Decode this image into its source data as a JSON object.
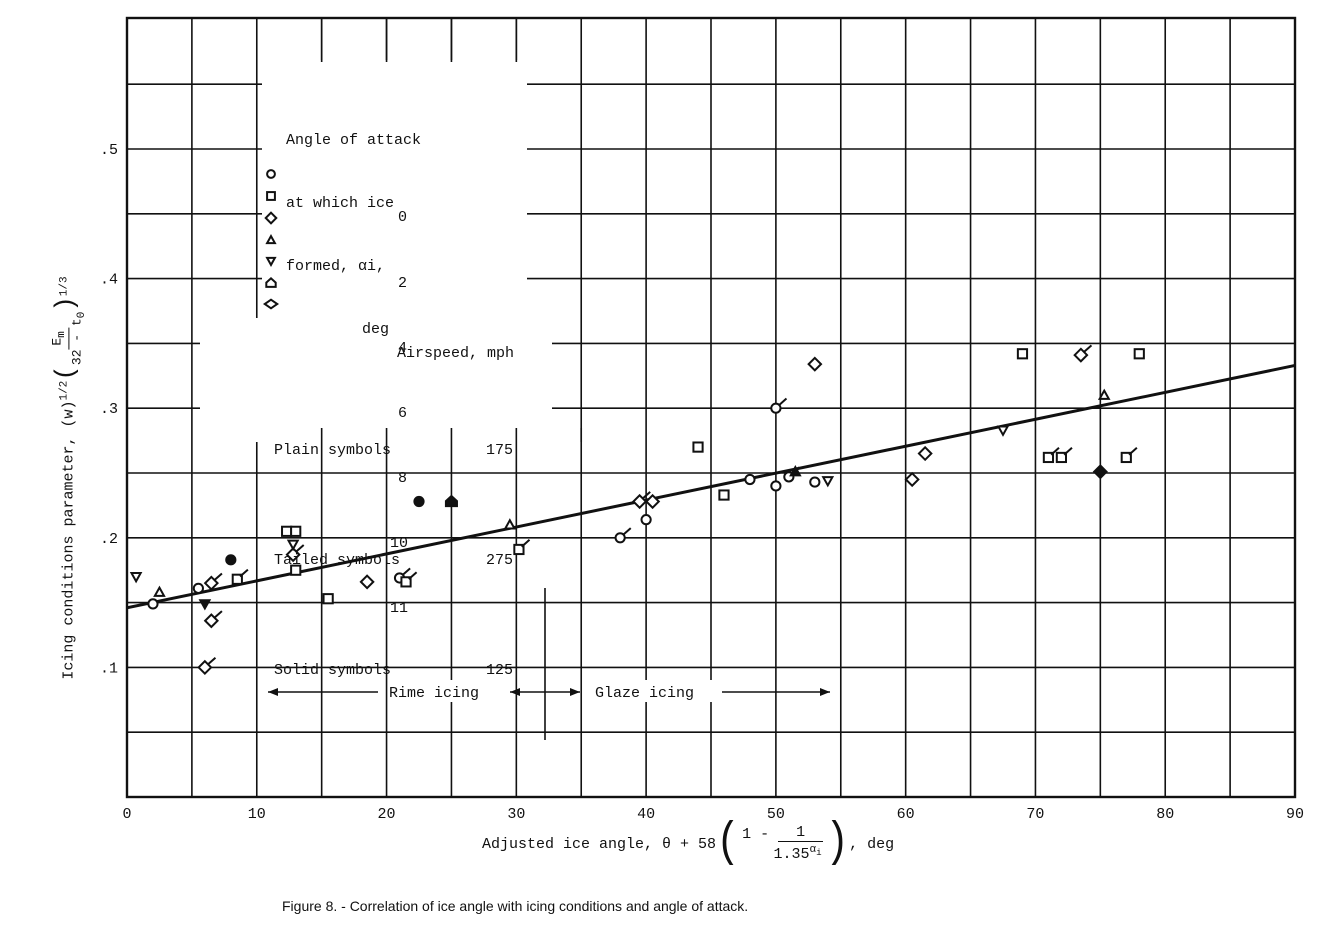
{
  "figure": {
    "caption": "Figure 8. - Correlation of ice angle with icing conditions and angle of attack."
  },
  "chart_data": {
    "type": "scatter",
    "title": "Correlation of ice angle with icing conditions and angle of attack",
    "xlabel": "Adjusted ice angle, θ + 58(1 - 1/1.35^αi), deg",
    "ylabel": "Icing conditions parameter, (w)^1/2 (Em/(32 - t0))^1/3",
    "xlim": [
      0,
      90
    ],
    "ylim": [
      0,
      0.6
    ],
    "x_ticks": [
      "0",
      "10",
      "20",
      "30",
      "40",
      "50",
      "60",
      "70",
      "80",
      "90"
    ],
    "y_ticks": [
      ".1",
      ".2",
      ".3",
      ".4",
      ".5"
    ],
    "grid": true,
    "grid_x_step": 5,
    "grid_y_step": 0.05,
    "fit_line": {
      "x": [
        0,
        90
      ],
      "y": [
        0.146,
        0.333
      ]
    },
    "annotations": [
      {
        "text": "Rime icing",
        "x_range": [
          11,
          35
        ],
        "y": 0.082
      },
      {
        "text": "Glaze icing",
        "x_range": [
          35,
          54
        ],
        "y": 0.082
      }
    ],
    "legend": {
      "title_lines": [
        "Angle of attack",
        "at which ice",
        "formed, αi,",
        "deg"
      ],
      "entries": [
        {
          "symbol": "circle",
          "label": "0"
        },
        {
          "symbol": "square",
          "label": "2"
        },
        {
          "symbol": "diamond",
          "label": "4"
        },
        {
          "symbol": "triangle-up",
          "label": "6"
        },
        {
          "symbol": "triangle-down",
          "label": "8"
        },
        {
          "symbol": "house",
          "label": "10"
        },
        {
          "symbol": "diamond-wide",
          "label": "11"
        }
      ],
      "airspeed_title": "Airspeed, mph",
      "airspeed": [
        {
          "label": "Plain symbols",
          "value": "175"
        },
        {
          "label": "Tailed symbols",
          "value": "275"
        },
        {
          "label": "Solid symbols",
          "value": "125"
        }
      ]
    },
    "series": [
      {
        "name": "0 deg",
        "symbol": "circle",
        "points": [
          {
            "x": 2.0,
            "y": 0.149,
            "style": "plain"
          },
          {
            "x": 5.5,
            "y": 0.161,
            "style": "plain"
          },
          {
            "x": 21.0,
            "y": 0.169,
            "style": "tailed"
          },
          {
            "x": 38.0,
            "y": 0.2,
            "style": "tailed"
          },
          {
            "x": 40.0,
            "y": 0.214,
            "style": "plain"
          },
          {
            "x": 48.0,
            "y": 0.245,
            "style": "plain"
          },
          {
            "x": 50.0,
            "y": 0.24,
            "style": "plain"
          },
          {
            "x": 51.0,
            "y": 0.247,
            "style": "tailed"
          },
          {
            "x": 53.0,
            "y": 0.243,
            "style": "plain"
          },
          {
            "x": 50.0,
            "y": 0.3,
            "style": "tailed"
          },
          {
            "x": 8.0,
            "y": 0.183,
            "style": "solid"
          },
          {
            "x": 22.5,
            "y": 0.228,
            "style": "solid"
          }
        ]
      },
      {
        "name": "2 deg",
        "symbol": "square",
        "points": [
          {
            "x": 8.5,
            "y": 0.168,
            "style": "tailed"
          },
          {
            "x": 12.3,
            "y": 0.205,
            "style": "plain"
          },
          {
            "x": 13.0,
            "y": 0.205,
            "style": "plain"
          },
          {
            "x": 13.0,
            "y": 0.175,
            "style": "plain"
          },
          {
            "x": 15.5,
            "y": 0.153,
            "style": "plain"
          },
          {
            "x": 21.5,
            "y": 0.166,
            "style": "tailed"
          },
          {
            "x": 30.2,
            "y": 0.191,
            "style": "tailed"
          },
          {
            "x": 44.0,
            "y": 0.27,
            "style": "plain"
          },
          {
            "x": 46.0,
            "y": 0.233,
            "style": "plain"
          },
          {
            "x": 69.0,
            "y": 0.342,
            "style": "plain"
          },
          {
            "x": 71.0,
            "y": 0.262,
            "style": "tailed"
          },
          {
            "x": 72.0,
            "y": 0.262,
            "style": "tailed"
          },
          {
            "x": 77.0,
            "y": 0.262,
            "style": "tailed"
          },
          {
            "x": 78.0,
            "y": 0.342,
            "style": "plain"
          }
        ]
      },
      {
        "name": "4 deg",
        "symbol": "diamond",
        "points": [
          {
            "x": 6.5,
            "y": 0.165,
            "style": "tailed"
          },
          {
            "x": 6.5,
            "y": 0.136,
            "style": "tailed"
          },
          {
            "x": 6.0,
            "y": 0.1,
            "style": "tailed"
          },
          {
            "x": 12.8,
            "y": 0.187,
            "style": "tailed"
          },
          {
            "x": 18.5,
            "y": 0.166,
            "style": "plain"
          },
          {
            "x": 39.5,
            "y": 0.228,
            "style": "tailed"
          },
          {
            "x": 40.5,
            "y": 0.228,
            "style": "plain"
          },
          {
            "x": 53.0,
            "y": 0.334,
            "style": "plain"
          },
          {
            "x": 60.5,
            "y": 0.245,
            "style": "plain"
          },
          {
            "x": 61.5,
            "y": 0.265,
            "style": "plain"
          },
          {
            "x": 73.5,
            "y": 0.341,
            "style": "tailed"
          },
          {
            "x": 75.0,
            "y": 0.251,
            "style": "solid"
          }
        ]
      },
      {
        "name": "6 deg",
        "symbol": "triangle-up",
        "points": [
          {
            "x": 2.5,
            "y": 0.158,
            "style": "plain"
          },
          {
            "x": 29.5,
            "y": 0.21,
            "style": "plain"
          },
          {
            "x": 51.5,
            "y": 0.251,
            "style": "solid"
          },
          {
            "x": 75.3,
            "y": 0.31,
            "style": "plain"
          }
        ]
      },
      {
        "name": "8 deg",
        "symbol": "triangle-down",
        "points": [
          {
            "x": 0.7,
            "y": 0.17,
            "style": "plain"
          },
          {
            "x": 6.0,
            "y": 0.149,
            "style": "solid"
          },
          {
            "x": 12.8,
            "y": 0.195,
            "style": "plain"
          },
          {
            "x": 54.0,
            "y": 0.244,
            "style": "plain"
          },
          {
            "x": 67.5,
            "y": 0.283,
            "style": "plain"
          }
        ]
      },
      {
        "name": "10 deg",
        "symbol": "house",
        "points": [
          {
            "x": 25.0,
            "y": 0.228,
            "style": "solid"
          }
        ]
      },
      {
        "name": "11 deg",
        "symbol": "diamond-wide",
        "points": []
      }
    ]
  }
}
